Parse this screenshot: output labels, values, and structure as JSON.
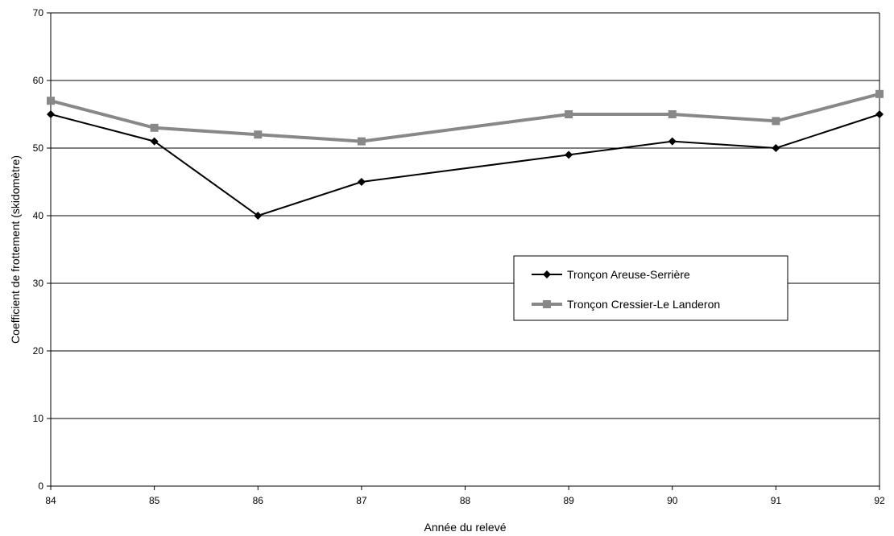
{
  "chart_data": {
    "type": "line",
    "title": "",
    "xlabel": "Année du relevé",
    "ylabel": "Coefficient de frottement (skidomètre)",
    "categories": [
      "84",
      "85",
      "86",
      "87",
      "88",
      "89",
      "90",
      "91",
      "92"
    ],
    "x": [
      84,
      85,
      86,
      87,
      89,
      90,
      91,
      92
    ],
    "ylim": [
      0,
      70
    ],
    "yticks": [
      0,
      10,
      20,
      30,
      40,
      50,
      60,
      70
    ],
    "grid": "horizontal",
    "legend_position": "center-right",
    "series": [
      {
        "name": "Tronçon Areuse-Serrière",
        "values": [
          55,
          51,
          40,
          45,
          49,
          51,
          50,
          55
        ],
        "color": "#000000",
        "marker": "diamond"
      },
      {
        "name": "Tronçon Cressier-Le Landeron",
        "values": [
          57,
          53,
          52,
          51,
          55,
          55,
          54,
          58
        ],
        "color": "#888888",
        "marker": "square"
      }
    ]
  }
}
